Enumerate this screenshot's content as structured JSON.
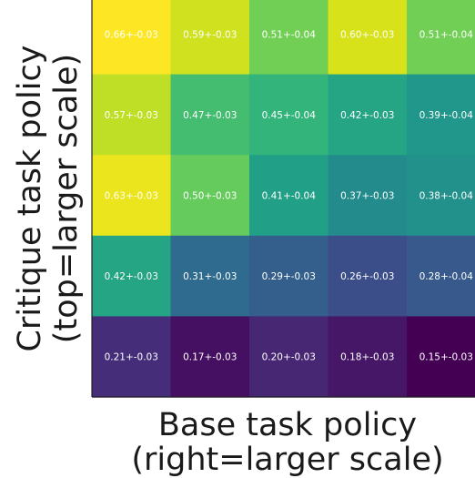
{
  "chart_data": {
    "type": "heatmap",
    "title": "",
    "xlabel_lines": [
      "Base task policy",
      "(right=larger scale)"
    ],
    "ylabel_lines": [
      "Critique task policy",
      "(top=larger scale)"
    ],
    "rows": 5,
    "cols": 5,
    "values": [
      [
        0.66,
        0.59,
        0.51,
        0.6,
        0.51
      ],
      [
        0.57,
        0.47,
        0.45,
        0.42,
        0.39
      ],
      [
        0.63,
        0.5,
        0.41,
        0.37,
        0.38
      ],
      [
        0.42,
        0.31,
        0.29,
        0.26,
        0.28
      ],
      [
        0.21,
        0.17,
        0.2,
        0.18,
        0.15
      ]
    ],
    "labels": [
      [
        "0.66+-0.03",
        "0.59+-0.03",
        "0.51+-0.04",
        "0.60+-0.03",
        "0.51+-0.04"
      ],
      [
        "0.57+-0.03",
        "0.47+-0.03",
        "0.45+-0.04",
        "0.42+-0.03",
        "0.39+-0.04"
      ],
      [
        "0.63+-0.03",
        "0.50+-0.03",
        "0.41+-0.04",
        "0.37+-0.03",
        "0.38+-0.04"
      ],
      [
        "0.42+-0.03",
        "0.31+-0.03",
        "0.29+-0.03",
        "0.26+-0.03",
        "0.28+-0.04"
      ],
      [
        "0.21+-0.03",
        "0.17+-0.03",
        "0.20+-0.03",
        "0.18+-0.03",
        "0.15+-0.03"
      ]
    ],
    "colormap": "viridis",
    "color_range": [
      0.15,
      0.66
    ],
    "grid": false
  }
}
